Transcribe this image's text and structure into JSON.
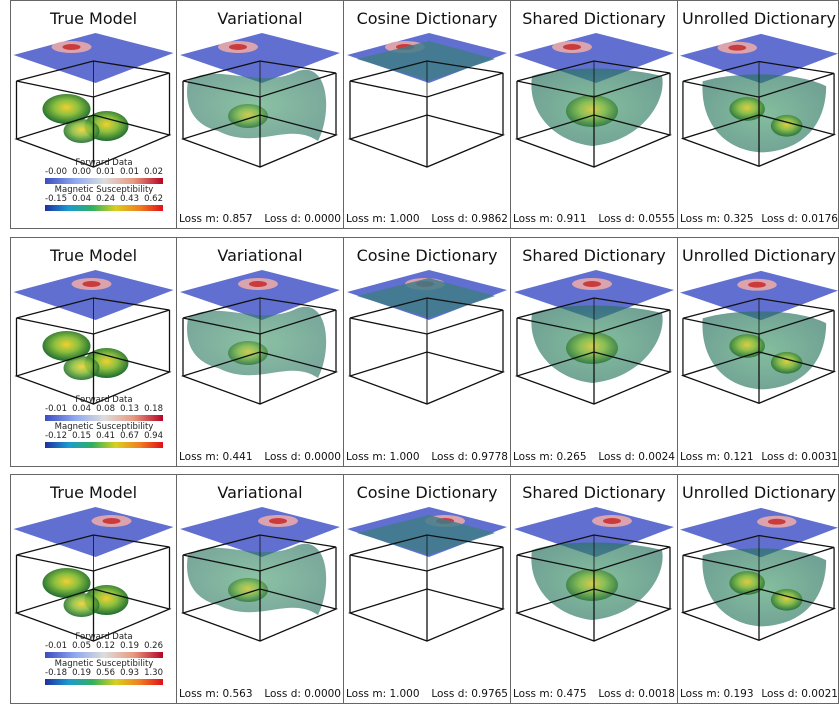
{
  "rows": [
    {
      "panels": [
        {
          "title": "True Model"
        },
        {
          "title": "Variational",
          "loss_m": "Loss m: 0.857",
          "loss_d": "Loss d: 0.0000"
        },
        {
          "title": "Cosine Dictionary",
          "loss_m": "Loss m: 1.000",
          "loss_d": "Loss d: 0.9862"
        },
        {
          "title": "Shared Dictionary",
          "loss_m": "Loss m: 0.911",
          "loss_d": "Loss d: 0.0555"
        },
        {
          "title": "Unrolled Dictionary",
          "loss_m": "Loss m: 0.325",
          "loss_d": "Loss d: 0.0176"
        }
      ],
      "legend": {
        "forward_title": "Forward Data",
        "forward_ticks": [
          "-0.00",
          "0.00",
          "0.01",
          "0.01",
          "0.02"
        ],
        "sus_title": "Magnetic Susceptibility",
        "sus_ticks": [
          "-0.15",
          "0.04",
          "0.24",
          "0.43",
          "0.62"
        ]
      }
    },
    {
      "panels": [
        {
          "title": "True Model"
        },
        {
          "title": "Variational",
          "loss_m": "Loss m: 0.441",
          "loss_d": "Loss d: 0.0000"
        },
        {
          "title": "Cosine Dictionary",
          "loss_m": "Loss m: 1.000",
          "loss_d": "Loss d: 0.9778"
        },
        {
          "title": "Shared Dictionary",
          "loss_m": "Loss m: 0.265",
          "loss_d": "Loss d: 0.0024"
        },
        {
          "title": "Unrolled Dictionary",
          "loss_m": "Loss m: 0.121",
          "loss_d": "Loss d: 0.0031"
        }
      ],
      "legend": {
        "forward_title": "Forward Data",
        "forward_ticks": [
          "-0.01",
          "0.04",
          "0.08",
          "0.13",
          "0.18"
        ],
        "sus_title": "Magnetic Susceptibility",
        "sus_ticks": [
          "-0.12",
          "0.15",
          "0.41",
          "0.67",
          "0.94"
        ]
      }
    },
    {
      "panels": [
        {
          "title": "True Model"
        },
        {
          "title": "Variational",
          "loss_m": "Loss m: 0.563",
          "loss_d": "Loss d: 0.0000"
        },
        {
          "title": "Cosine Dictionary",
          "loss_m": "Loss m: 1.000",
          "loss_d": "Loss d: 0.9765"
        },
        {
          "title": "Shared Dictionary",
          "loss_m": "Loss m: 0.475",
          "loss_d": "Loss d: 0.0018"
        },
        {
          "title": "Unrolled Dictionary",
          "loss_m": "Loss m: 0.193",
          "loss_d": "Loss d: 0.0021"
        }
      ],
      "legend": {
        "forward_title": "Forward Data",
        "forward_ticks": [
          "-0.01",
          "0.05",
          "0.12",
          "0.19",
          "0.26"
        ],
        "sus_title": "Magnetic Susceptibility",
        "sus_ticks": [
          "-0.18",
          "0.19",
          "0.56",
          "0.93",
          "1.30"
        ]
      }
    }
  ]
}
